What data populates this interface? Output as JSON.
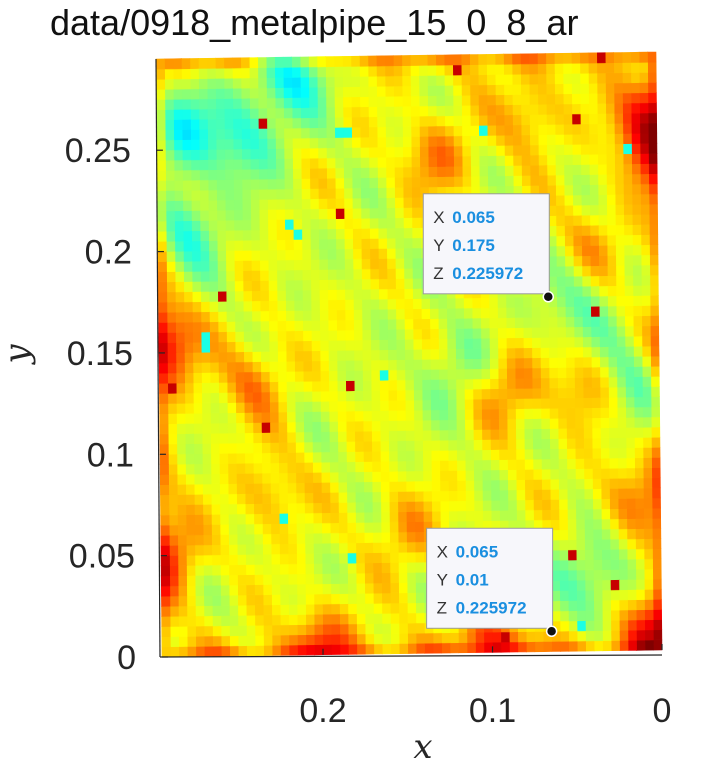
{
  "title": "data/0918_metalpipe_15_0_8_ar",
  "chart_data": {
    "type": "heatmap",
    "title": "data/0918_metalpipe_15_0_8_ar",
    "xlabel": "x",
    "ylabel": "y",
    "xlim": [
      0,
      0.295
    ],
    "ylim": [
      0,
      0.295
    ],
    "x_reversed": true,
    "xticks": [
      0.2,
      0.1,
      0
    ],
    "xtick_labels": [
      "0.2",
      "0.1",
      "0"
    ],
    "yticks": [
      0,
      0.05,
      0.1,
      0.15,
      0.2,
      0.25
    ],
    "ytick_labels": [
      "0",
      "0.05",
      "0.1",
      "0.15",
      "0.2",
      "0.25"
    ],
    "colormap": "jet",
    "grid_spacing": 0.005,
    "hotspots": [
      {
        "x": 0.005,
        "y": 0.265,
        "w": 0.7
      },
      {
        "x": 0.005,
        "y": 0.245,
        "w": 0.5
      },
      {
        "x": 0.29,
        "y": 0.155,
        "w": 0.7
      },
      {
        "x": 0.29,
        "y": 0.05,
        "w": 0.55
      },
      {
        "x": 0.24,
        "y": 0.135,
        "w": 0.45
      },
      {
        "x": 0.13,
        "y": 0.245,
        "w": 0.45
      },
      {
        "x": 0.075,
        "y": 0.265,
        "w": 0.4
      },
      {
        "x": 0.09,
        "y": 0.13,
        "w": 0.45
      },
      {
        "x": 0.045,
        "y": 0.13,
        "w": 0.4
      },
      {
        "x": 0.02,
        "y": 0.075,
        "w": 0.4
      },
      {
        "x": 0.1,
        "y": 0.005,
        "w": 0.6
      },
      {
        "x": 0.2,
        "y": 0.005,
        "w": 0.55
      },
      {
        "x": 0.005,
        "y": 0.01,
        "w": 0.8
      },
      {
        "x": 0.23,
        "y": 0.08,
        "w": 0.35
      },
      {
        "x": 0.15,
        "y": 0.06,
        "w": 0.35
      },
      {
        "x": 0.04,
        "y": 0.2,
        "w": 0.3
      }
    ],
    "coldspots": [
      {
        "x": 0.215,
        "y": 0.29,
        "w": 0.65
      },
      {
        "x": 0.285,
        "y": 0.26,
        "w": 0.55
      },
      {
        "x": 0.28,
        "y": 0.21,
        "w": 0.45
      },
      {
        "x": 0.245,
        "y": 0.255,
        "w": 0.45
      },
      {
        "x": 0.04,
        "y": 0.035,
        "w": 0.4
      },
      {
        "x": 0.015,
        "y": 0.13,
        "w": 0.35
      },
      {
        "x": 0.05,
        "y": 0.17,
        "w": 0.3
      },
      {
        "x": 0.12,
        "y": 0.14,
        "w": 0.25
      }
    ],
    "datatips": [
      {
        "X": "0.065",
        "Y": "0.175",
        "Z": "0.225972",
        "x": 0.065,
        "y": 0.175,
        "box": "above-left"
      },
      {
        "X": "0.065",
        "Y": "0.01",
        "Z": "0.225972",
        "x": 0.065,
        "y": 0.01,
        "box": "above-left"
      }
    ]
  }
}
